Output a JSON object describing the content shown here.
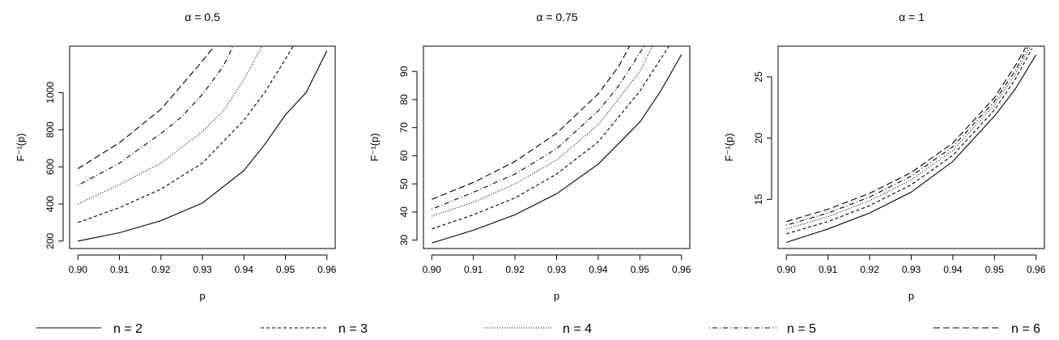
{
  "legend": {
    "position": "bottom",
    "entries": [
      {
        "label": "n = 2",
        "dash": "solid"
      },
      {
        "label": "n = 3",
        "dash": "dashed"
      },
      {
        "label": "n = 4",
        "dash": "dotted"
      },
      {
        "label": "n = 5",
        "dash": "dotdash"
      },
      {
        "label": "n = 6",
        "dash": "longdash"
      }
    ]
  },
  "chart_data": [
    {
      "type": "line",
      "title": "α = 0.5",
      "xlabel": "p",
      "ylabel": "F⁻¹(p)",
      "xlim": [
        0.898,
        0.962
      ],
      "ylim": [
        160,
        1250
      ],
      "xticks": [
        0.9,
        0.91,
        0.92,
        0.93,
        0.94,
        0.95,
        0.96
      ],
      "xtick_labels": [
        "0.90",
        "0.91",
        "0.92",
        "0.93",
        "0.94",
        "0.95",
        "0.96"
      ],
      "yticks": [
        200,
        400,
        600,
        800,
        1000
      ],
      "ytick_labels": [
        "200",
        "400",
        "600",
        "800",
        "1000"
      ],
      "grid": false,
      "series": [
        {
          "name": "n = 2",
          "dash": "solid",
          "x": [
            0.9,
            0.91,
            0.92,
            0.93,
            0.94,
            0.945,
            0.95,
            0.955,
            0.96
          ],
          "y": [
            200,
            245,
            310,
            405,
            580,
            720,
            880,
            1000,
            1225
          ]
        },
        {
          "name": "n = 3",
          "dash": "dashed",
          "x": [
            0.9,
            0.91,
            0.92,
            0.93,
            0.94,
            0.945,
            0.95,
            0.952
          ],
          "y": [
            300,
            380,
            480,
            620,
            850,
            1000,
            1180,
            1255
          ]
        },
        {
          "name": "n = 4",
          "dash": "dotted",
          "x": [
            0.9,
            0.91,
            0.92,
            0.93,
            0.935,
            0.94,
            0.9445
          ],
          "y": [
            400,
            505,
            620,
            790,
            900,
            1070,
            1255
          ]
        },
        {
          "name": "n = 5",
          "dash": "dotdash",
          "x": [
            0.9,
            0.91,
            0.92,
            0.925,
            0.93,
            0.935,
            0.9375
          ],
          "y": [
            500,
            620,
            780,
            870,
            990,
            1140,
            1255
          ]
        },
        {
          "name": "n = 6",
          "dash": "longdash",
          "x": [
            0.9,
            0.91,
            0.92,
            0.925,
            0.93,
            0.933
          ],
          "y": [
            590,
            730,
            910,
            1040,
            1170,
            1255
          ]
        }
      ]
    },
    {
      "type": "line",
      "title": "α = 0.75",
      "xlabel": "p",
      "ylabel": "F⁻¹(p)",
      "xlim": [
        0.898,
        0.962
      ],
      "ylim": [
        27,
        99
      ],
      "xticks": [
        0.9,
        0.91,
        0.92,
        0.93,
        0.94,
        0.95,
        0.96
      ],
      "xtick_labels": [
        "0.90",
        "0.91",
        "0.92",
        "0.93",
        "0.94",
        "0.95",
        "0.96"
      ],
      "yticks": [
        30,
        40,
        50,
        60,
        70,
        80,
        90
      ],
      "ytick_labels": [
        "30",
        "40",
        "50",
        "60",
        "70",
        "80",
        "90"
      ],
      "grid": false,
      "series": [
        {
          "name": "n = 2",
          "dash": "solid",
          "x": [
            0.9,
            0.91,
            0.92,
            0.93,
            0.94,
            0.95,
            0.955,
            0.96
          ],
          "y": [
            29,
            33.5,
            39,
            46.5,
            57,
            72,
            83,
            96
          ]
        },
        {
          "name": "n = 3",
          "dash": "dashed",
          "x": [
            0.9,
            0.91,
            0.92,
            0.93,
            0.94,
            0.95,
            0.957
          ],
          "y": [
            34,
            39,
            45,
            53.5,
            65,
            83,
            99
          ]
        },
        {
          "name": "n = 4",
          "dash": "dotted",
          "x": [
            0.9,
            0.91,
            0.92,
            0.93,
            0.94,
            0.95,
            0.953
          ],
          "y": [
            38.5,
            43.5,
            50,
            58.5,
            71,
            90,
            99
          ]
        },
        {
          "name": "n = 5",
          "dash": "dotdash",
          "x": [
            0.9,
            0.91,
            0.92,
            0.93,
            0.94,
            0.945,
            0.951
          ],
          "y": [
            41,
            47,
            53.5,
            62.5,
            76,
            85,
            99
          ]
        },
        {
          "name": "n = 6",
          "dash": "longdash",
          "x": [
            0.9,
            0.91,
            0.92,
            0.93,
            0.94,
            0.945,
            0.9475
          ],
          "y": [
            44.5,
            50.5,
            58,
            68,
            82,
            92,
            99
          ]
        }
      ]
    },
    {
      "type": "line",
      "title": "α = 1",
      "xlabel": "p",
      "ylabel": "F⁻¹(p)",
      "xlim": [
        0.898,
        0.962
      ],
      "ylim": [
        11,
        27.5
      ],
      "xticks": [
        0.9,
        0.91,
        0.92,
        0.93,
        0.94,
        0.95,
        0.96
      ],
      "xtick_labels": [
        "0.90",
        "0.91",
        "0.92",
        "0.93",
        "0.94",
        "0.95",
        "0.96"
      ],
      "yticks": [
        15,
        20,
        25
      ],
      "ytick_labels": [
        "15",
        "20",
        "25"
      ],
      "grid": false,
      "series": [
        {
          "name": "n = 2",
          "dash": "solid",
          "x": [
            0.9,
            0.91,
            0.92,
            0.93,
            0.94,
            0.95,
            0.955,
            0.96
          ],
          "y": [
            11.5,
            12.6,
            13.9,
            15.6,
            18.1,
            21.8,
            24.0,
            26.8
          ]
        },
        {
          "name": "n = 3",
          "dash": "dashed",
          "x": [
            0.9,
            0.91,
            0.92,
            0.93,
            0.94,
            0.95,
            0.955,
            0.959
          ],
          "y": [
            12.2,
            13.2,
            14.5,
            16.2,
            18.6,
            22.3,
            24.8,
            27.3
          ]
        },
        {
          "name": "n = 4",
          "dash": "dotted",
          "x": [
            0.9,
            0.91,
            0.92,
            0.93,
            0.94,
            0.95,
            0.955,
            0.9585
          ],
          "y": [
            12.6,
            13.6,
            14.9,
            16.6,
            19.0,
            22.7,
            25.2,
            27.4
          ]
        },
        {
          "name": "n = 5",
          "dash": "dotdash",
          "x": [
            0.9,
            0.91,
            0.92,
            0.93,
            0.94,
            0.95,
            0.955,
            0.958
          ],
          "y": [
            12.9,
            13.9,
            15.2,
            16.9,
            19.3,
            23.0,
            25.5,
            27.4
          ]
        },
        {
          "name": "n = 6",
          "dash": "longdash",
          "x": [
            0.9,
            0.91,
            0.92,
            0.93,
            0.94,
            0.95,
            0.955,
            0.9575
          ],
          "y": [
            13.2,
            14.2,
            15.5,
            17.2,
            19.6,
            23.3,
            25.9,
            27.4
          ]
        }
      ]
    }
  ]
}
